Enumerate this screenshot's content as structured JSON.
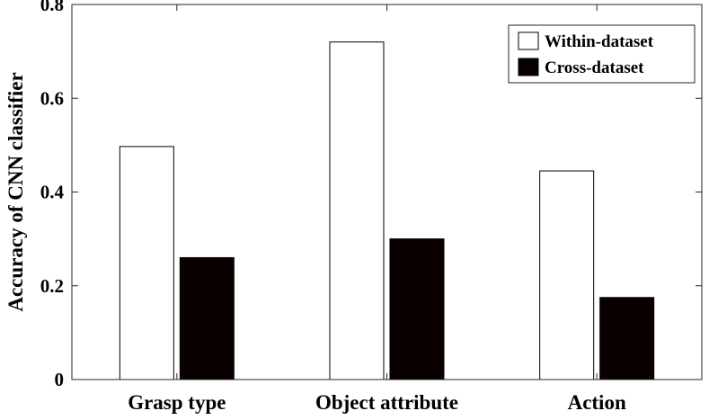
{
  "chart_data": {
    "type": "bar",
    "categories": [
      "Grasp type",
      "Object attribute",
      "Action"
    ],
    "series": [
      {
        "name": "Within-dataset",
        "values": [
          0.497,
          0.72,
          0.445
        ],
        "color": "#ffffff"
      },
      {
        "name": "Cross-dataset",
        "values": [
          0.26,
          0.3,
          0.175
        ],
        "color": "#0a0000"
      }
    ],
    "ylabel": "Accuracy of CNN classifier",
    "xlabel": "",
    "ylim": [
      0,
      0.8
    ],
    "yticks": [
      0,
      0.2,
      0.4,
      0.6,
      0.8
    ],
    "ytick_labels": [
      "0",
      "0.2",
      "0.4",
      "0.6",
      "0.8"
    ],
    "legend_position": "top-right",
    "grid": false
  }
}
